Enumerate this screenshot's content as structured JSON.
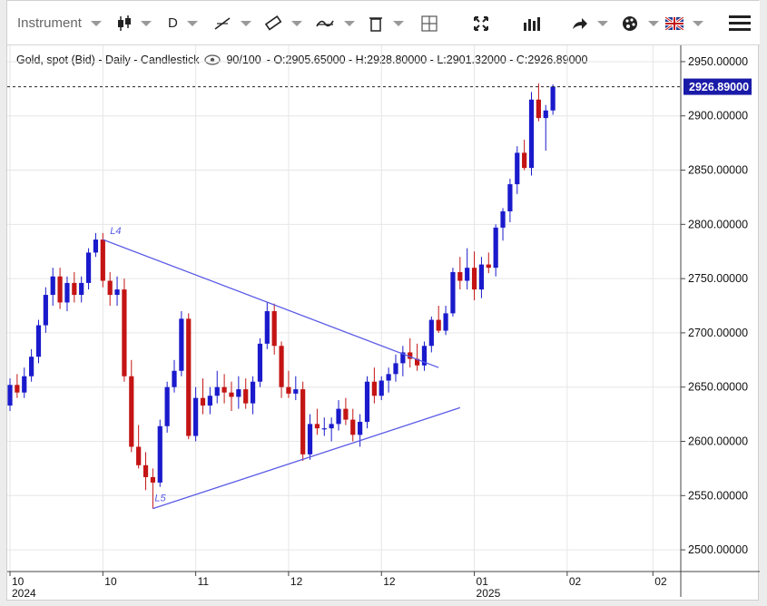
{
  "toolbar": {
    "instrument_label": "Instrument",
    "period_label": "D",
    "icons": [
      "candlestick-icon",
      "line-draw-icon",
      "ruler-icon",
      "indicator-icon",
      "trash-icon",
      "crosshair-icon",
      "fullscreen-icon",
      "volume-bars-icon",
      "share-icon",
      "palette-icon",
      "uk-flag-icon",
      "menu-icon"
    ]
  },
  "info": {
    "title": "Gold, spot (Bid) - Daily - Candlestick",
    "count": "90/100",
    "ohlc": "- O:2905.65000 - H:2928.80000 - L:2901.32000 - C:2926.89000"
  },
  "colors": {
    "up": "#1a1acc",
    "down": "#c41414",
    "trend": "#5a5ae6",
    "last_price_bg": "#1a1aa8"
  },
  "chart_data": {
    "type": "candlestick",
    "title": "Gold, spot (Bid) - Daily - Candlestick",
    "ylim": [
      2480,
      2965
    ],
    "y_ticks": [
      2500,
      2550,
      2600,
      2650,
      2700,
      2750,
      2800,
      2850,
      2900,
      2950
    ],
    "y_tick_labels": [
      "2500.00000",
      "2550.00000",
      "2600.00000",
      "2650.00000",
      "2700.00000",
      "2750.00000",
      "2800.00000",
      "2850.00000",
      "2900.00000",
      "2950.00000"
    ],
    "x_ticks": [
      {
        "label": "10",
        "sub": "2024",
        "index": 0
      },
      {
        "label": "10",
        "sub": "",
        "index": 13
      },
      {
        "label": "11",
        "sub": "",
        "index": 26
      },
      {
        "label": "12",
        "sub": "",
        "index": 39
      },
      {
        "label": "12",
        "sub": "",
        "index": 52
      },
      {
        "label": "01",
        "sub": "2025",
        "index": 65
      },
      {
        "label": "02",
        "sub": "",
        "index": 78
      },
      {
        "label": "02",
        "sub": "",
        "index": 90
      }
    ],
    "last_price": "2926.89000",
    "last_price_value": 2926.89,
    "candles": [
      [
        2633,
        2658,
        2628,
        2652
      ],
      [
        2652,
        2662,
        2640,
        2645
      ],
      [
        2645,
        2668,
        2640,
        2660
      ],
      [
        2660,
        2685,
        2655,
        2678
      ],
      [
        2678,
        2712,
        2672,
        2707
      ],
      [
        2707,
        2742,
        2700,
        2735
      ],
      [
        2735,
        2760,
        2725,
        2752
      ],
      [
        2752,
        2760,
        2722,
        2728
      ],
      [
        2728,
        2752,
        2720,
        2746
      ],
      [
        2746,
        2756,
        2728,
        2735
      ],
      [
        2735,
        2752,
        2728,
        2746
      ],
      [
        2746,
        2778,
        2740,
        2774
      ],
      [
        2774,
        2792,
        2770,
        2786
      ],
      [
        2786,
        2792,
        2742,
        2748
      ],
      [
        2748,
        2756,
        2725,
        2735
      ],
      [
        2735,
        2752,
        2725,
        2740
      ],
      [
        2740,
        2750,
        2655,
        2660
      ],
      [
        2660,
        2675,
        2590,
        2595
      ],
      [
        2595,
        2615,
        2575,
        2578
      ],
      [
        2578,
        2590,
        2555,
        2567
      ],
      [
        2567,
        2575,
        2538,
        2562
      ],
      [
        2562,
        2620,
        2558,
        2614
      ],
      [
        2614,
        2655,
        2608,
        2650
      ],
      [
        2650,
        2675,
        2645,
        2665
      ],
      [
        2665,
        2720,
        2660,
        2713
      ],
      [
        2713,
        2718,
        2602,
        2605
      ],
      [
        2605,
        2650,
        2600,
        2640
      ],
      [
        2640,
        2658,
        2625,
        2633
      ],
      [
        2633,
        2650,
        2625,
        2642
      ],
      [
        2642,
        2665,
        2635,
        2650
      ],
      [
        2650,
        2662,
        2635,
        2645
      ],
      [
        2645,
        2655,
        2628,
        2641
      ],
      [
        2641,
        2660,
        2630,
        2648
      ],
      [
        2648,
        2658,
        2630,
        2635
      ],
      [
        2635,
        2660,
        2625,
        2655
      ],
      [
        2655,
        2695,
        2650,
        2690
      ],
      [
        2690,
        2728,
        2685,
        2720
      ],
      [
        2720,
        2727,
        2680,
        2688
      ],
      [
        2688,
        2692,
        2640,
        2650
      ],
      [
        2650,
        2665,
        2640,
        2644
      ],
      [
        2644,
        2660,
        2638,
        2648
      ],
      [
        2648,
        2655,
        2582,
        2588
      ],
      [
        2588,
        2625,
        2583,
        2616
      ],
      [
        2616,
        2630,
        2606,
        2612
      ],
      [
        2612,
        2622,
        2605,
        2612
      ],
      [
        2612,
        2622,
        2600,
        2616
      ],
      [
        2616,
        2638,
        2610,
        2630
      ],
      [
        2630,
        2640,
        2615,
        2620
      ],
      [
        2620,
        2630,
        2600,
        2606
      ],
      [
        2606,
        2625,
        2595,
        2618
      ],
      [
        2618,
        2660,
        2612,
        2655
      ],
      [
        2655,
        2668,
        2635,
        2642
      ],
      [
        2642,
        2660,
        2638,
        2656
      ],
      [
        2656,
        2668,
        2645,
        2662
      ],
      [
        2662,
        2680,
        2655,
        2672
      ],
      [
        2672,
        2688,
        2660,
        2682
      ],
      [
        2682,
        2695,
        2668,
        2676
      ],
      [
        2676,
        2690,
        2665,
        2670
      ],
      [
        2670,
        2692,
        2665,
        2688
      ],
      [
        2688,
        2715,
        2682,
        2712
      ],
      [
        2712,
        2725,
        2700,
        2702
      ],
      [
        2702,
        2725,
        2698,
        2718
      ],
      [
        2718,
        2760,
        2715,
        2756
      ],
      [
        2756,
        2770,
        2740,
        2748
      ],
      [
        2748,
        2778,
        2740,
        2760
      ],
      [
        2760,
        2775,
        2730,
        2740
      ],
      [
        2740,
        2770,
        2732,
        2763
      ],
      [
        2763,
        2774,
        2755,
        2760
      ],
      [
        2760,
        2800,
        2752,
        2797
      ],
      [
        2797,
        2815,
        2785,
        2812
      ],
      [
        2812,
        2842,
        2802,
        2837
      ],
      [
        2837,
        2872,
        2828,
        2866
      ],
      [
        2866,
        2878,
        2850,
        2852
      ],
      [
        2852,
        2922,
        2845,
        2915
      ],
      [
        2915,
        2930,
        2895,
        2898
      ],
      [
        2898,
        2910,
        2868,
        2905
      ],
      [
        2905,
        2929,
        2901,
        2927
      ]
    ],
    "annotations": [
      {
        "text": "L4",
        "index": 13,
        "value": 2786
      },
      {
        "text": "L5",
        "index": 20,
        "value": 2538
      }
    ],
    "trendlines": [
      {
        "from_index": 13,
        "from_value": 2786,
        "to_index": 60,
        "to_value": 2668
      },
      {
        "from_index": 20,
        "from_value": 2538,
        "to_index": 63,
        "to_value": 2631
      }
    ]
  }
}
